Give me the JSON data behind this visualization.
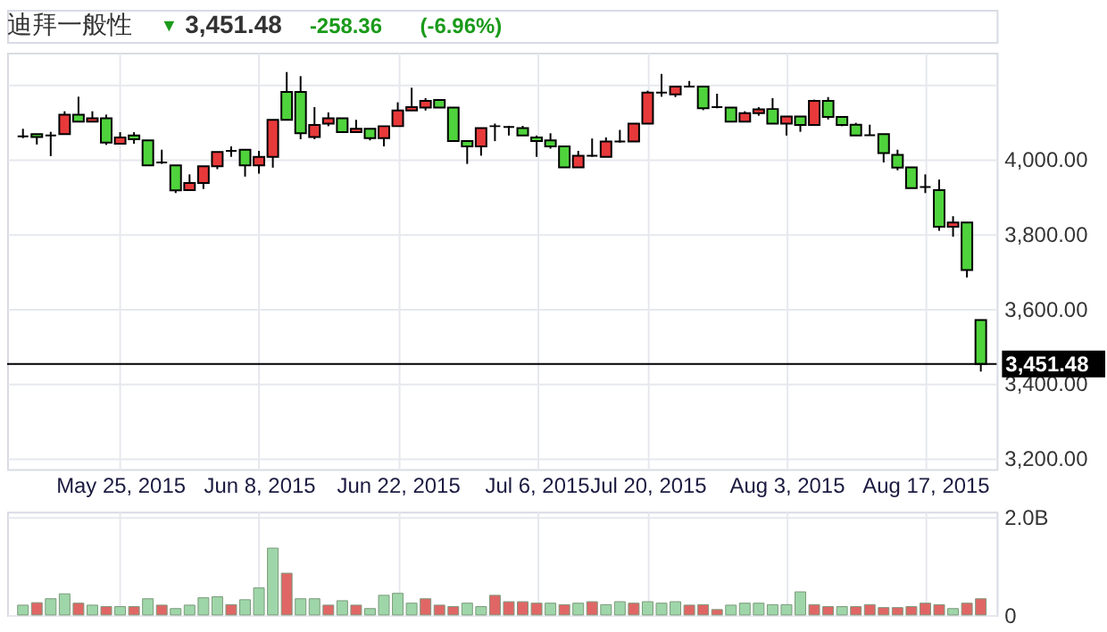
{
  "chart_data": [
    {
      "type": "candlestick",
      "title": "迪拜一般性",
      "annotations": [
        "▼",
        "3,451.48",
        "-258.36",
        "(-6.96%)"
      ],
      "categories": [
        null,
        null,
        null,
        null,
        null,
        null,
        null,
        "May 25, 2015",
        null,
        null,
        null,
        null,
        null,
        null,
        null,
        null,
        null,
        "Jun 8, 2015",
        null,
        null,
        null,
        null,
        null,
        null,
        null,
        null,
        null,
        "Jun 22, 2015",
        null,
        null,
        null,
        null,
        null,
        null,
        null,
        null,
        null,
        "Jul 6, 2015",
        null,
        null,
        null,
        null,
        null,
        null,
        null,
        "Jul 20, 2015",
        null,
        null,
        null,
        null,
        null,
        null,
        null,
        null,
        null,
        "Aug 3, 2015",
        null,
        null,
        null,
        null,
        null,
        null,
        null,
        null,
        null,
        "Aug 17, 2015",
        null,
        null,
        null,
        null
      ],
      "ohlc": [
        [
          4061,
          4081,
          4056,
          4061
        ],
        [
          4067,
          4067,
          4039,
          4059
        ],
        [
          4063,
          4073,
          4008,
          4063
        ],
        [
          4067,
          4128,
          4067,
          4119
        ],
        [
          4119,
          4167,
          4100,
          4100
        ],
        [
          4100,
          4128,
          4100,
          4109
        ],
        [
          4109,
          4119,
          4038,
          4044
        ],
        [
          4041,
          4072,
          4041,
          4058
        ],
        [
          4063,
          4072,
          4041,
          4053
        ],
        [
          4050,
          4050,
          3983,
          3983
        ],
        [
          3991,
          4025,
          3987,
          3991
        ],
        [
          3983,
          3983,
          3909,
          3916
        ],
        [
          3917,
          3959,
          3917,
          3936
        ],
        [
          3936,
          3981,
          3920,
          3981
        ],
        [
          3981,
          4019,
          3973,
          4019
        ],
        [
          4022,
          4034,
          4006,
          4022
        ],
        [
          4025,
          4025,
          3953,
          3983
        ],
        [
          3983,
          4022,
          3961,
          4006
        ],
        [
          4006,
          4105,
          3977,
          4105
        ],
        [
          4180,
          4233,
          4105,
          4105
        ],
        [
          4180,
          4222,
          4053,
          4069
        ],
        [
          4059,
          4139,
          4053,
          4091
        ],
        [
          4095,
          4125,
          4088,
          4109
        ],
        [
          4109,
          4109,
          4072,
          4072
        ],
        [
          4072,
          4105,
          4072,
          4081
        ],
        [
          4081,
          4081,
          4050,
          4056
        ],
        [
          4056,
          4088,
          4034,
          4088
        ],
        [
          4088,
          4152,
          4088,
          4130
        ],
        [
          4130,
          4191,
          4130,
          4139
        ],
        [
          4138,
          4163,
          4130,
          4156
        ],
        [
          4158,
          4159,
          4138,
          4138
        ],
        [
          4138,
          4138,
          4048,
          4048
        ],
        [
          4048,
          4048,
          3987,
          4034
        ],
        [
          4034,
          4083,
          4009,
          4083
        ],
        [
          4088,
          4095,
          4048,
          4088
        ],
        [
          4086,
          4089,
          4063,
          4086
        ],
        [
          4083,
          4089,
          4063,
          4063
        ],
        [
          4058,
          4063,
          4006,
          4048
        ],
        [
          4050,
          4069,
          4028,
          4034
        ],
        [
          4034,
          4034,
          3978,
          3978
        ],
        [
          3978,
          4022,
          3978,
          4009
        ],
        [
          4009,
          4055,
          4006,
          4009
        ],
        [
          4006,
          4058,
          4006,
          4047
        ],
        [
          4047,
          4078,
          4044,
          4047
        ],
        [
          4047,
          4095,
          4047,
          4095
        ],
        [
          4095,
          4183,
          4095,
          4178
        ],
        [
          4178,
          4228,
          4167,
          4178
        ],
        [
          4173,
          4194,
          4166,
          4194
        ],
        [
          4194,
          4209,
          4194,
          4194
        ],
        [
          4194,
          4194,
          4131,
          4136
        ],
        [
          4139,
          4175,
          4136,
          4139
        ],
        [
          4138,
          4138,
          4100,
          4100
        ],
        [
          4100,
          4128,
          4100,
          4123
        ],
        [
          4123,
          4139,
          4116,
          4133
        ],
        [
          4134,
          4163,
          4095,
          4095
        ],
        [
          4095,
          4114,
          4063,
          4114
        ],
        [
          4114,
          4114,
          4073,
          4091
        ],
        [
          4091,
          4159,
          4091,
          4156
        ],
        [
          4156,
          4166,
          4106,
          4113
        ],
        [
          4113,
          4113,
          4088,
          4091
        ],
        [
          4092,
          4097,
          4063,
          4063
        ],
        [
          4064,
          4092,
          4064,
          4064
        ],
        [
          4067,
          4067,
          3991,
          4016
        ],
        [
          4011,
          4025,
          3970,
          3977
        ],
        [
          3978,
          3978,
          3922,
          3922
        ],
        [
          3925,
          3959,
          3909,
          3925
        ],
        [
          3917,
          3945,
          3808,
          3819
        ],
        [
          3819,
          3847,
          3792,
          3830
        ],
        [
          3830,
          3830,
          3683,
          3703
        ],
        [
          3569,
          3569,
          3431,
          3451.48
        ]
      ],
      "colors": [
        "#000000",
        "#4fd33c",
        "#000000",
        "#e8393a",
        "#4fd33c",
        "#e8393a",
        "#4fd33c",
        "#e8393a",
        "#4fd33c",
        "#4fd33c",
        "#000000",
        "#4fd33c",
        "#e8393a",
        "#e8393a",
        "#e8393a",
        "#000000",
        "#4fd33c",
        "#e8393a",
        "#e8393a",
        "#4fd33c",
        "#4fd33c",
        "#e8393a",
        "#e8393a",
        "#4fd33c",
        "#e8393a",
        "#4fd33c",
        "#e8393a",
        "#e8393a",
        "#e8393a",
        "#e8393a",
        "#4fd33c",
        "#4fd33c",
        "#4fd33c",
        "#e8393a",
        "#000000",
        "#000000",
        "#4fd33c",
        "#4fd33c",
        "#4fd33c",
        "#4fd33c",
        "#e8393a",
        "#000000",
        "#e8393a",
        "#000000",
        "#e8393a",
        "#e8393a",
        "#000000",
        "#e8393a",
        "#000000",
        "#4fd33c",
        "#000000",
        "#4fd33c",
        "#e8393a",
        "#e8393a",
        "#4fd33c",
        "#e8393a",
        "#4fd33c",
        "#e8393a",
        "#4fd33c",
        "#4fd33c",
        "#4fd33c",
        "#000000",
        "#4fd33c",
        "#4fd33c",
        "#4fd33c",
        "#000000",
        "#4fd33c",
        "#e8393a",
        "#4fd33c",
        "#4fd33c"
      ],
      "ylim": [
        3170,
        4285
      ],
      "yticks": [
        {
          "value": 3200,
          "label": "3,200.00"
        },
        {
          "value": 3400,
          "label": "3,400.00"
        },
        {
          "value": 3600,
          "label": "3,600.00"
        },
        {
          "value": 3800,
          "label": "3,800.00"
        },
        {
          "value": 4000,
          "label": "4,000.00"
        },
        {
          "value": 4200,
          "label": null
        }
      ],
      "ref_lines": [
        {
          "axis": "y",
          "value": 3451.48,
          "label": "3,451.48",
          "color": "#000000"
        }
      ],
      "grid": true
    },
    {
      "type": "bar",
      "categories": [
        null,
        null,
        null,
        null,
        null,
        null,
        null,
        null,
        null,
        null,
        null,
        null,
        null,
        null,
        null,
        null,
        null,
        null,
        null,
        null,
        null,
        null,
        null,
        null,
        null,
        null,
        null,
        null,
        null,
        null,
        null,
        null,
        null,
        null,
        null,
        null,
        null,
        null,
        null,
        null,
        null,
        null,
        null,
        null,
        null,
        null,
        null,
        null,
        null,
        null,
        null,
        null,
        null,
        null,
        null,
        null,
        null,
        null,
        null,
        null,
        null,
        null,
        null,
        null,
        null,
        null,
        null,
        null,
        null,
        null
      ],
      "values": [
        0.2,
        0.25,
        0.33,
        0.43,
        0.24,
        0.2,
        0.17,
        0.17,
        0.17,
        0.33,
        0.2,
        0.13,
        0.2,
        0.35,
        0.37,
        0.21,
        0.31,
        0.55,
        1.36,
        0.85,
        0.33,
        0.33,
        0.2,
        0.29,
        0.2,
        0.13,
        0.4,
        0.44,
        0.24,
        0.33,
        0.2,
        0.17,
        0.24,
        0.17,
        0.4,
        0.27,
        0.27,
        0.24,
        0.24,
        0.21,
        0.24,
        0.27,
        0.21,
        0.27,
        0.24,
        0.27,
        0.24,
        0.27,
        0.2,
        0.21,
        0.11,
        0.2,
        0.24,
        0.24,
        0.21,
        0.21,
        0.47,
        0.21,
        0.17,
        0.17,
        0.17,
        0.21,
        0.15,
        0.15,
        0.17,
        0.24,
        0.21,
        0.13,
        0.24,
        0.33
      ],
      "colors": [
        "#9fd6a9",
        "#e06666",
        "#9fd6a9",
        "#9fd6a9",
        "#e06666",
        "#9fd6a9",
        "#e06666",
        "#9fd6a9",
        "#e06666",
        "#9fd6a9",
        "#e06666",
        "#9fd6a9",
        "#9fd6a9",
        "#9fd6a9",
        "#9fd6a9",
        "#e06666",
        "#9fd6a9",
        "#9fd6a9",
        "#9fd6a9",
        "#e06666",
        "#9fd6a9",
        "#9fd6a9",
        "#e06666",
        "#9fd6a9",
        "#e06666",
        "#9fd6a9",
        "#9fd6a9",
        "#9fd6a9",
        "#9fd6a9",
        "#e06666",
        "#e06666",
        "#e06666",
        "#9fd6a9",
        "#9fd6a9",
        "#e06666",
        "#e06666",
        "#e06666",
        "#e06666",
        "#9fd6a9",
        "#e06666",
        "#9fd6a9",
        "#e06666",
        "#9fd6a9",
        "#9fd6a9",
        "#e06666",
        "#9fd6a9",
        "#9fd6a9",
        "#9fd6a9",
        "#e06666",
        "#e06666",
        "#e06666",
        "#9fd6a9",
        "#9fd6a9",
        "#9fd6a9",
        "#9fd6a9",
        "#9fd6a9",
        "#9fd6a9",
        "#e06666",
        "#e06666",
        "#9fd6a9",
        "#e06666",
        "#e06666",
        "#e06666",
        "#e06666",
        "#e06666",
        "#e06666",
        "#e06666",
        "#9fd6a9",
        "#e06666",
        "#e06666"
      ],
      "ylim": [
        0,
        2.1
      ],
      "yticks": [
        0,
        {
          "value": 2,
          "label": "2.0B"
        }
      ],
      "tick_labels": "y",
      "grid": true
    }
  ]
}
